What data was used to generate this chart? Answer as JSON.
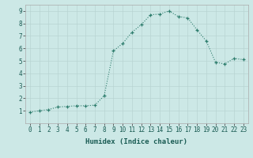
{
  "x": [
    0,
    1,
    2,
    3,
    4,
    5,
    6,
    7,
    8,
    9,
    10,
    11,
    12,
    13,
    14,
    15,
    16,
    17,
    18,
    19,
    20,
    21,
    22,
    23
  ],
  "y": [
    0.9,
    1.0,
    1.1,
    1.3,
    1.35,
    1.4,
    1.4,
    1.45,
    2.2,
    5.8,
    6.4,
    7.3,
    7.9,
    8.7,
    8.75,
    9.0,
    8.55,
    8.45,
    7.5,
    6.6,
    4.9,
    4.75,
    5.2,
    5.1
  ],
  "xlabel": "Humidex (Indice chaleur)",
  "ylabel": "",
  "xlim": [
    -0.5,
    23.5
  ],
  "ylim": [
    0,
    9.5
  ],
  "xticks": [
    0,
    1,
    2,
    3,
    4,
    5,
    6,
    7,
    8,
    9,
    10,
    11,
    12,
    13,
    14,
    15,
    16,
    17,
    18,
    19,
    20,
    21,
    22,
    23
  ],
  "yticks": [
    1,
    2,
    3,
    4,
    5,
    6,
    7,
    8,
    9
  ],
  "line_color": "#2e7d6d",
  "bg_color": "#cce8e6",
  "grid_color": "#b8d4d2",
  "marker": "+",
  "label_fontsize": 6.5,
  "tick_fontsize": 5.5
}
